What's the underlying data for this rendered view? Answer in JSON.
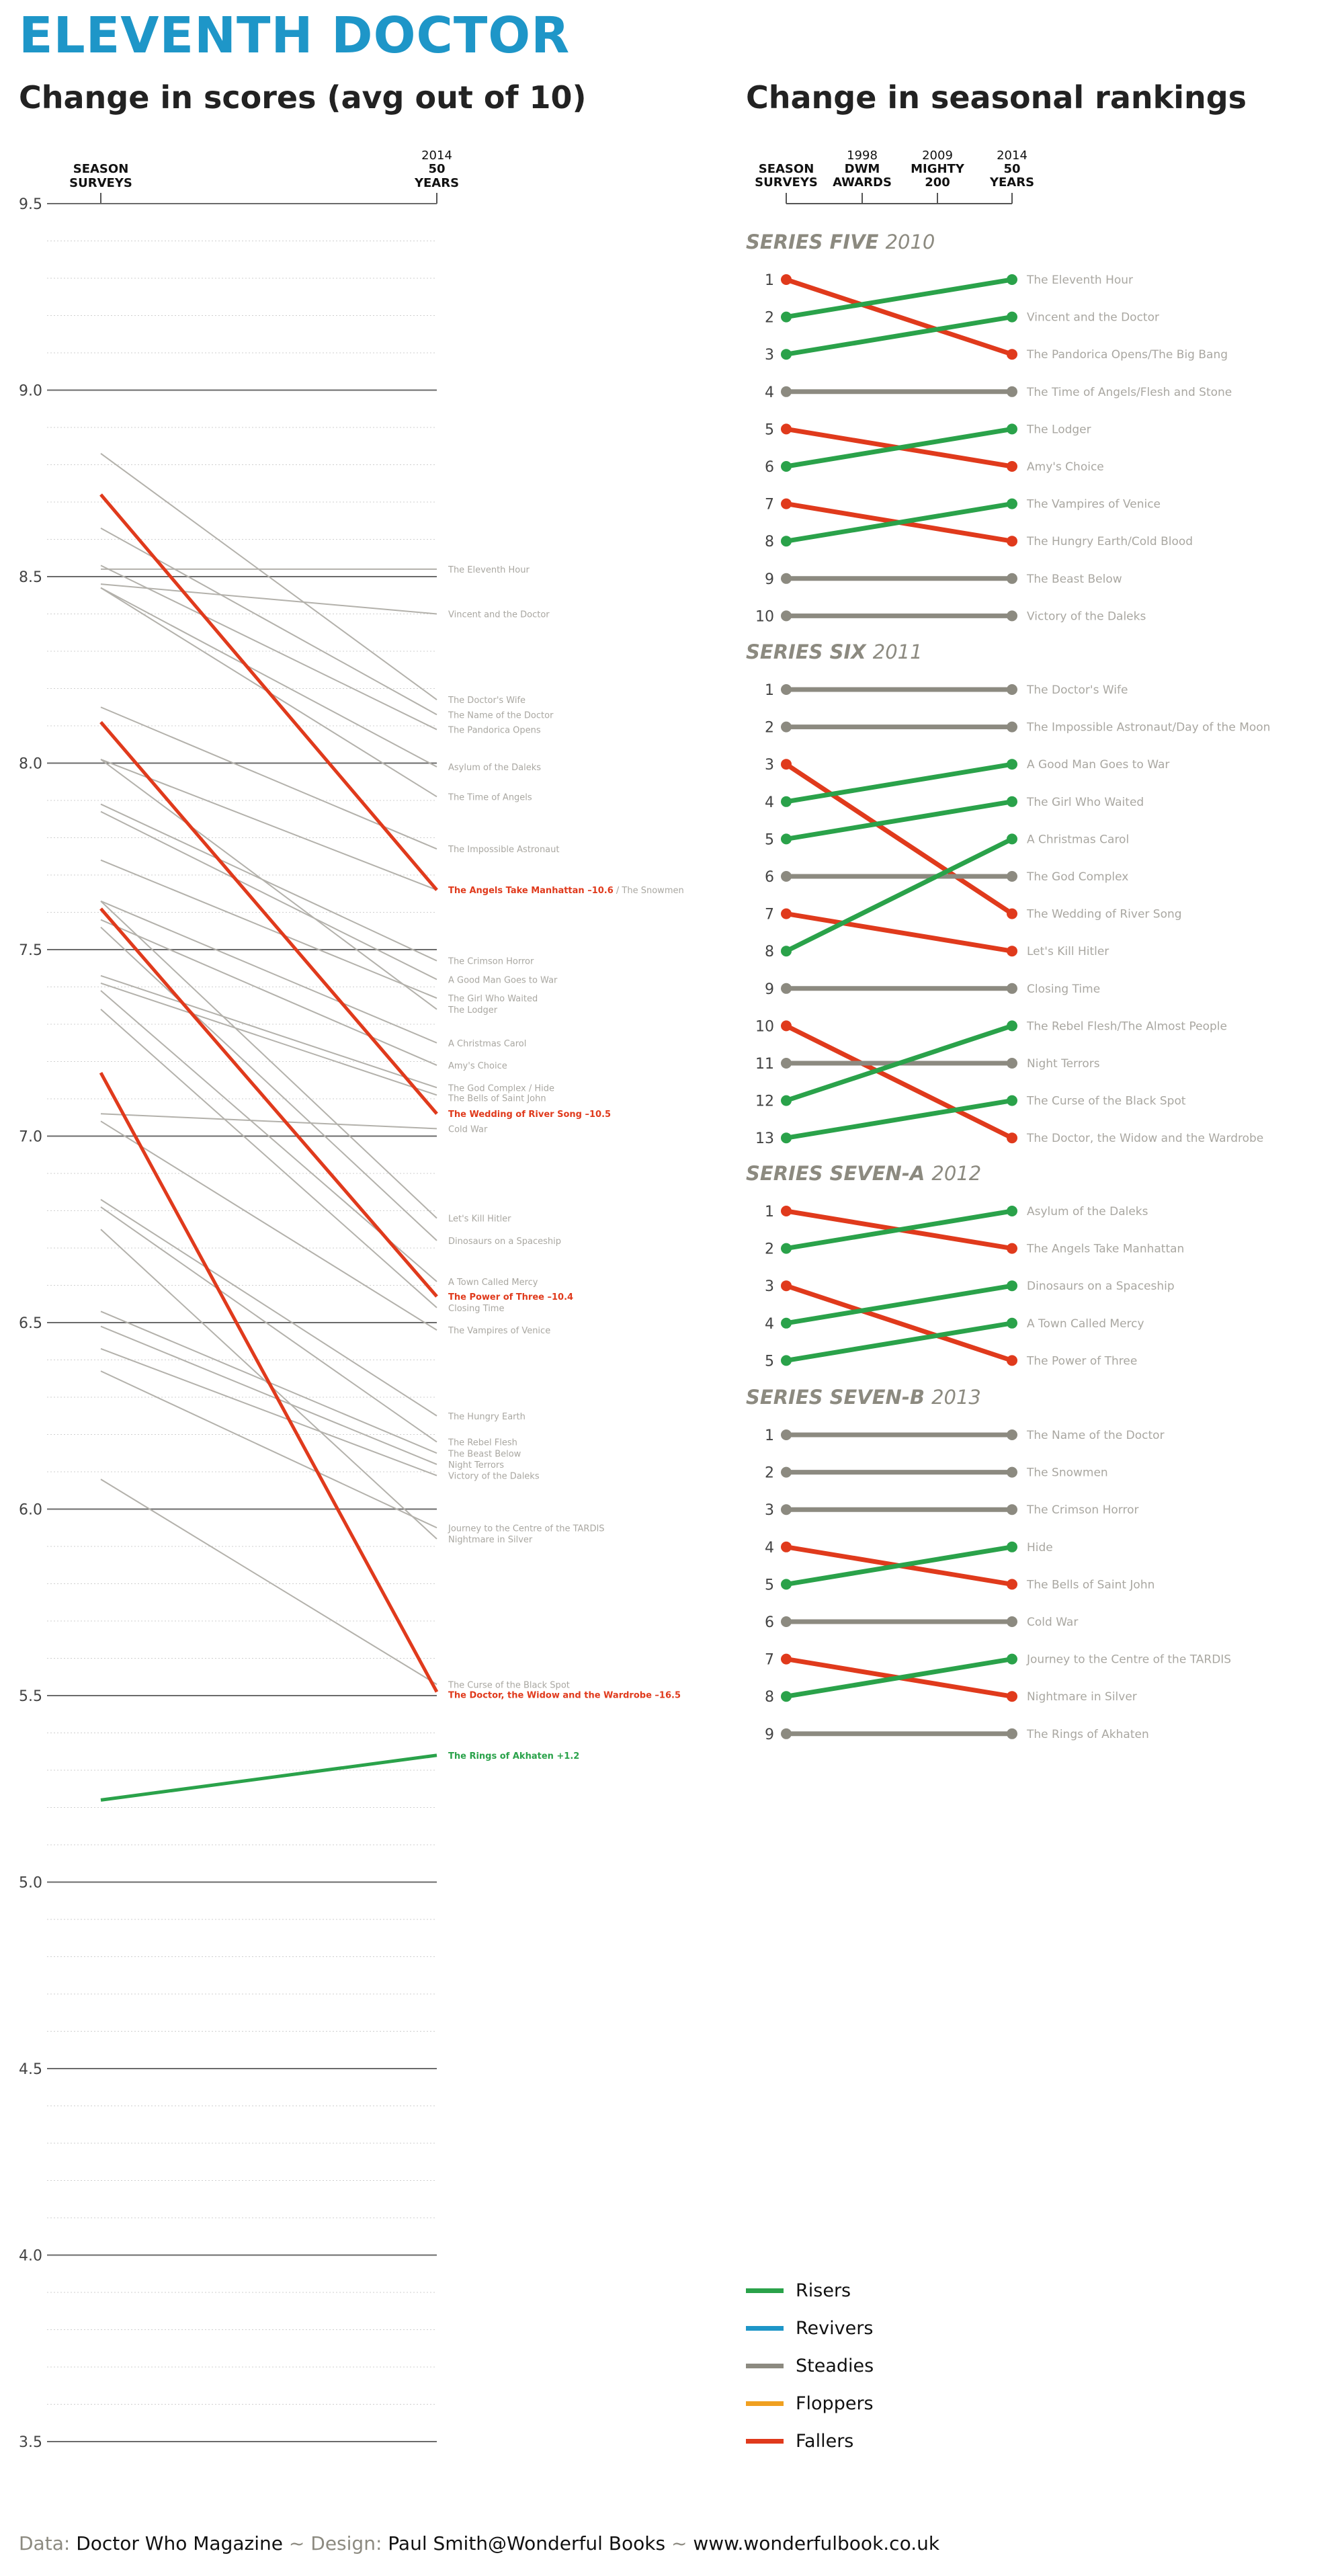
{
  "page": {
    "title": "ELEVENTH DOCTOR",
    "left_title": "Change in scores (avg out of 10)",
    "right_title": "Change in seasonal rankings"
  },
  "colors": {
    "title": "#1e96c8",
    "risers": "#2aa24a",
    "revivers": "#1e96c8",
    "steadies": "#8c8a80",
    "floppers": "#f0a020",
    "fallers": "#e03a1c",
    "neutral_line": "#b3b1ab",
    "label_grey": "#a9a7a1"
  },
  "legend": [
    {
      "label": "Risers",
      "color": "#2aa24a"
    },
    {
      "label": "Revivers",
      "color": "#1e96c8"
    },
    {
      "label": "Steadies",
      "color": "#8c8a80"
    },
    {
      "label": "Floppers",
      "color": "#f0a020"
    },
    {
      "label": "Fallers",
      "color": "#e03a1c"
    }
  ],
  "credits": {
    "data_key": "Data:",
    "data_value": "Doctor Who Magazine",
    "sep": "~",
    "design_key": "Design:",
    "design_value": "Paul Smith@Wonderful Books",
    "url": "www.wonderfulbook.co.uk"
  },
  "chart_data": [
    {
      "type": "line",
      "title": "Change in scores (avg out of 10)",
      "x": [
        "SEASON SURVEYS",
        "2014 50 YEARS"
      ],
      "x_header": {
        "left": [
          "SEASON",
          "SURVEYS"
        ],
        "right": [
          "2014",
          "50",
          "YEARS"
        ]
      },
      "ylim": [
        3.5,
        9.5
      ],
      "yticks": [
        "3.5",
        "4.0",
        "4.5",
        "5.0",
        "5.5",
        "6.0",
        "6.5",
        "7.0",
        "7.5",
        "8.0",
        "8.5",
        "9.0",
        "9.5"
      ],
      "series": [
        {
          "name": "The Eleventh Hour",
          "values": [
            8.52,
            8.52
          ],
          "status": "neutral"
        },
        {
          "name": "Vincent and the Doctor",
          "values": [
            8.48,
            8.4
          ],
          "status": "neutral"
        },
        {
          "name": "The Doctor's Wife",
          "values": [
            8.83,
            8.17
          ],
          "status": "neutral"
        },
        {
          "name": "The Name of the Doctor",
          "values": [
            8.63,
            8.13
          ],
          "status": "neutral"
        },
        {
          "name": "The Pandorica Opens",
          "values": [
            8.53,
            8.09
          ],
          "status": "neutral"
        },
        {
          "name": "Asylum of the Daleks",
          "values": [
            8.47,
            7.99
          ],
          "status": "neutral"
        },
        {
          "name": "The Time of Angels",
          "values": [
            8.47,
            7.91
          ],
          "status": "neutral"
        },
        {
          "name": "The Impossible Astronaut",
          "values": [
            8.15,
            7.77
          ],
          "status": "neutral"
        },
        {
          "name": "The Angels Take Manhattan",
          "values": [
            8.72,
            7.66
          ],
          "status": "highlight",
          "note": "–10.6",
          "suffix": "/ The Snowmen"
        },
        {
          "name": "The Snowmen",
          "values": [
            8.01,
            7.66
          ],
          "status": "neutral",
          "hidden_label": true
        },
        {
          "name": "The Crimson Horror",
          "values": [
            7.89,
            7.47
          ],
          "status": "neutral"
        },
        {
          "name": "A Good Man Goes to War",
          "values": [
            7.87,
            7.42
          ],
          "status": "neutral"
        },
        {
          "name": "The Girl Who Waited",
          "values": [
            7.74,
            7.37
          ],
          "status": "neutral"
        },
        {
          "name": "The Lodger",
          "values": [
            8.01,
            7.34
          ],
          "status": "neutral"
        },
        {
          "name": "A Christmas Carol",
          "values": [
            7.63,
            7.25
          ],
          "status": "neutral"
        },
        {
          "name": "Amy's Choice",
          "values": [
            7.58,
            7.19
          ],
          "status": "neutral"
        },
        {
          "name": "The God Complex / Hide",
          "values": [
            7.43,
            7.13
          ],
          "status": "neutral"
        },
        {
          "name": "The Bells of Saint John",
          "values": [
            7.41,
            7.11
          ],
          "status": "neutral"
        },
        {
          "name": "The Wedding of River Song",
          "values": [
            8.11,
            7.06
          ],
          "status": "highlight",
          "note": "–10.5"
        },
        {
          "name": "Cold War",
          "values": [
            7.06,
            7.02
          ],
          "status": "neutral"
        },
        {
          "name": "Let's Kill Hitler",
          "values": [
            7.63,
            6.78
          ],
          "status": "neutral"
        },
        {
          "name": "Dinosaurs on a Spaceship",
          "values": [
            7.56,
            6.72
          ],
          "status": "neutral"
        },
        {
          "name": "A Town Called Mercy",
          "values": [
            7.39,
            6.61
          ],
          "status": "neutral"
        },
        {
          "name": "The Power of Three",
          "values": [
            7.61,
            6.57
          ],
          "status": "highlight",
          "note": "–10.4"
        },
        {
          "name": "Closing Time",
          "values": [
            7.34,
            6.54
          ],
          "status": "neutral"
        },
        {
          "name": "The Vampires of Venice",
          "values": [
            7.04,
            6.48
          ],
          "status": "neutral"
        },
        {
          "name": "The Hungry Earth",
          "values": [
            6.83,
            6.25
          ],
          "status": "neutral"
        },
        {
          "name": "The Rebel Flesh",
          "values": [
            6.81,
            6.18
          ],
          "status": "neutral"
        },
        {
          "name": "The Beast Below",
          "values": [
            6.53,
            6.15
          ],
          "status": "neutral"
        },
        {
          "name": "Night Terrors",
          "values": [
            6.49,
            6.12
          ],
          "status": "neutral"
        },
        {
          "name": "Victory of the Daleks",
          "values": [
            6.43,
            6.09
          ],
          "status": "neutral"
        },
        {
          "name": "Journey to the Centre of the TARDIS",
          "values": [
            6.37,
            5.95
          ],
          "status": "neutral"
        },
        {
          "name": "Nightmare in Silver",
          "values": [
            6.75,
            5.92
          ],
          "status": "neutral"
        },
        {
          "name": "The Curse of the Black Spot",
          "values": [
            6.08,
            5.53
          ],
          "status": "neutral"
        },
        {
          "name": "The Doctor, the Widow and the Wardrobe",
          "values": [
            7.17,
            5.51
          ],
          "status": "highlight",
          "note": "–16.5"
        },
        {
          "name": "The Rings of Akhaten",
          "values": [
            5.22,
            5.34
          ],
          "status": "riser",
          "note": "+1.2"
        }
      ]
    },
    {
      "type": "slope",
      "title": "Change in seasonal rankings",
      "columns": [
        {
          "lines": [
            "",
            "SEASON",
            "SURVEYS"
          ]
        },
        {
          "lines": [
            "1998",
            "DWM",
            "AWARDS"
          ]
        },
        {
          "lines": [
            "2009",
            "MIGHTY",
            "200"
          ]
        },
        {
          "lines": [
            "2014",
            "50",
            "YEARS"
          ]
        }
      ],
      "series_groups": [
        {
          "name": "SERIES FIVE",
          "year": "2010",
          "left_ranks": [
            "1",
            "2",
            "3",
            "4",
            "5",
            "6",
            "7",
            "8",
            "9",
            "10"
          ],
          "right_titles": [
            "The Eleventh Hour",
            "Vincent and the Doctor",
            "The Pandorica Opens/The Big Bang",
            "The Time of Angels/Flesh and Stone",
            "The Lodger",
            "Amy's Choice",
            "The Vampires of Venice",
            "The Hungry Earth/Cold Blood",
            "The Beast Below",
            "Victory of the Daleks"
          ],
          "links": [
            {
              "from": 1,
              "to": 3,
              "kind": "fallers"
            },
            {
              "from": 2,
              "to": 1,
              "kind": "risers"
            },
            {
              "from": 3,
              "to": 2,
              "kind": "risers"
            },
            {
              "from": 4,
              "to": 4,
              "kind": "steadies"
            },
            {
              "from": 5,
              "to": 6,
              "kind": "fallers"
            },
            {
              "from": 6,
              "to": 5,
              "kind": "risers"
            },
            {
              "from": 7,
              "to": 8,
              "kind": "fallers"
            },
            {
              "from": 8,
              "to": 7,
              "kind": "risers"
            },
            {
              "from": 9,
              "to": 9,
              "kind": "steadies"
            },
            {
              "from": 10,
              "to": 10,
              "kind": "steadies"
            }
          ]
        },
        {
          "name": "SERIES SIX",
          "year": "2011",
          "left_ranks": [
            "1",
            "2",
            "3",
            "4",
            "5",
            "6",
            "7",
            "8",
            "9",
            "10",
            "11",
            "12",
            "13"
          ],
          "right_titles": [
            "The Doctor's Wife",
            "The Impossible Astronaut/Day of the Moon",
            "A Good Man Goes to War",
            "The Girl Who Waited",
            "A Christmas Carol",
            "The God Complex",
            "The Wedding of River Song",
            "Let's Kill Hitler",
            "Closing Time",
            "The Rebel Flesh/The Almost People",
            "Night Terrors",
            "The Curse of the Black Spot",
            "The Doctor, the Widow and the Wardrobe"
          ],
          "links": [
            {
              "from": 1,
              "to": 1,
              "kind": "steadies"
            },
            {
              "from": 2,
              "to": 2,
              "kind": "steadies"
            },
            {
              "from": 3,
              "to": 7,
              "kind": "fallers"
            },
            {
              "from": 4,
              "to": 3,
              "kind": "risers"
            },
            {
              "from": 5,
              "to": 4,
              "kind": "risers"
            },
            {
              "from": 6,
              "to": 6,
              "kind": "steadies"
            },
            {
              "from": 7,
              "to": 8,
              "kind": "fallers"
            },
            {
              "from": 8,
              "to": 5,
              "kind": "risers"
            },
            {
              "from": 9,
              "to": 9,
              "kind": "steadies"
            },
            {
              "from": 10,
              "to": 13,
              "kind": "fallers"
            },
            {
              "from": 11,
              "to": 11,
              "kind": "steadies"
            },
            {
              "from": 12,
              "to": 10,
              "kind": "risers"
            },
            {
              "from": 13,
              "to": 12,
              "kind": "risers"
            }
          ]
        },
        {
          "name": "SERIES SEVEN-A",
          "year": "2012",
          "left_ranks": [
            "1",
            "2",
            "3",
            "4",
            "5"
          ],
          "right_titles": [
            "Asylum of the Daleks",
            "The Angels Take Manhattan",
            "Dinosaurs on a Spaceship",
            "A Town Called Mercy",
            "The Power of Three"
          ],
          "links": [
            {
              "from": 1,
              "to": 2,
              "kind": "fallers"
            },
            {
              "from": 2,
              "to": 1,
              "kind": "risers"
            },
            {
              "from": 3,
              "to": 5,
              "kind": "fallers"
            },
            {
              "from": 4,
              "to": 3,
              "kind": "risers"
            },
            {
              "from": 5,
              "to": 4,
              "kind": "risers"
            }
          ]
        },
        {
          "name": "SERIES SEVEN-B",
          "year": "2013",
          "left_ranks": [
            "1",
            "2",
            "3",
            "4",
            "5",
            "6",
            "7",
            "8",
            "9"
          ],
          "right_titles": [
            "The Name of the Doctor",
            "The Snowmen",
            "The Crimson Horror",
            "Hide",
            "The Bells of Saint John",
            "Cold War",
            "Journey to the Centre of the TARDIS",
            "Nightmare in Silver",
            "The Rings of Akhaten"
          ],
          "links": [
            {
              "from": 1,
              "to": 1,
              "kind": "steadies"
            },
            {
              "from": 2,
              "to": 2,
              "kind": "steadies"
            },
            {
              "from": 3,
              "to": 3,
              "kind": "steadies"
            },
            {
              "from": 4,
              "to": 5,
              "kind": "fallers"
            },
            {
              "from": 5,
              "to": 4,
              "kind": "risers"
            },
            {
              "from": 6,
              "to": 6,
              "kind": "steadies"
            },
            {
              "from": 7,
              "to": 8,
              "kind": "fallers"
            },
            {
              "from": 8,
              "to": 7,
              "kind": "risers"
            },
            {
              "from": 9,
              "to": 9,
              "kind": "steadies"
            }
          ]
        }
      ]
    }
  ]
}
